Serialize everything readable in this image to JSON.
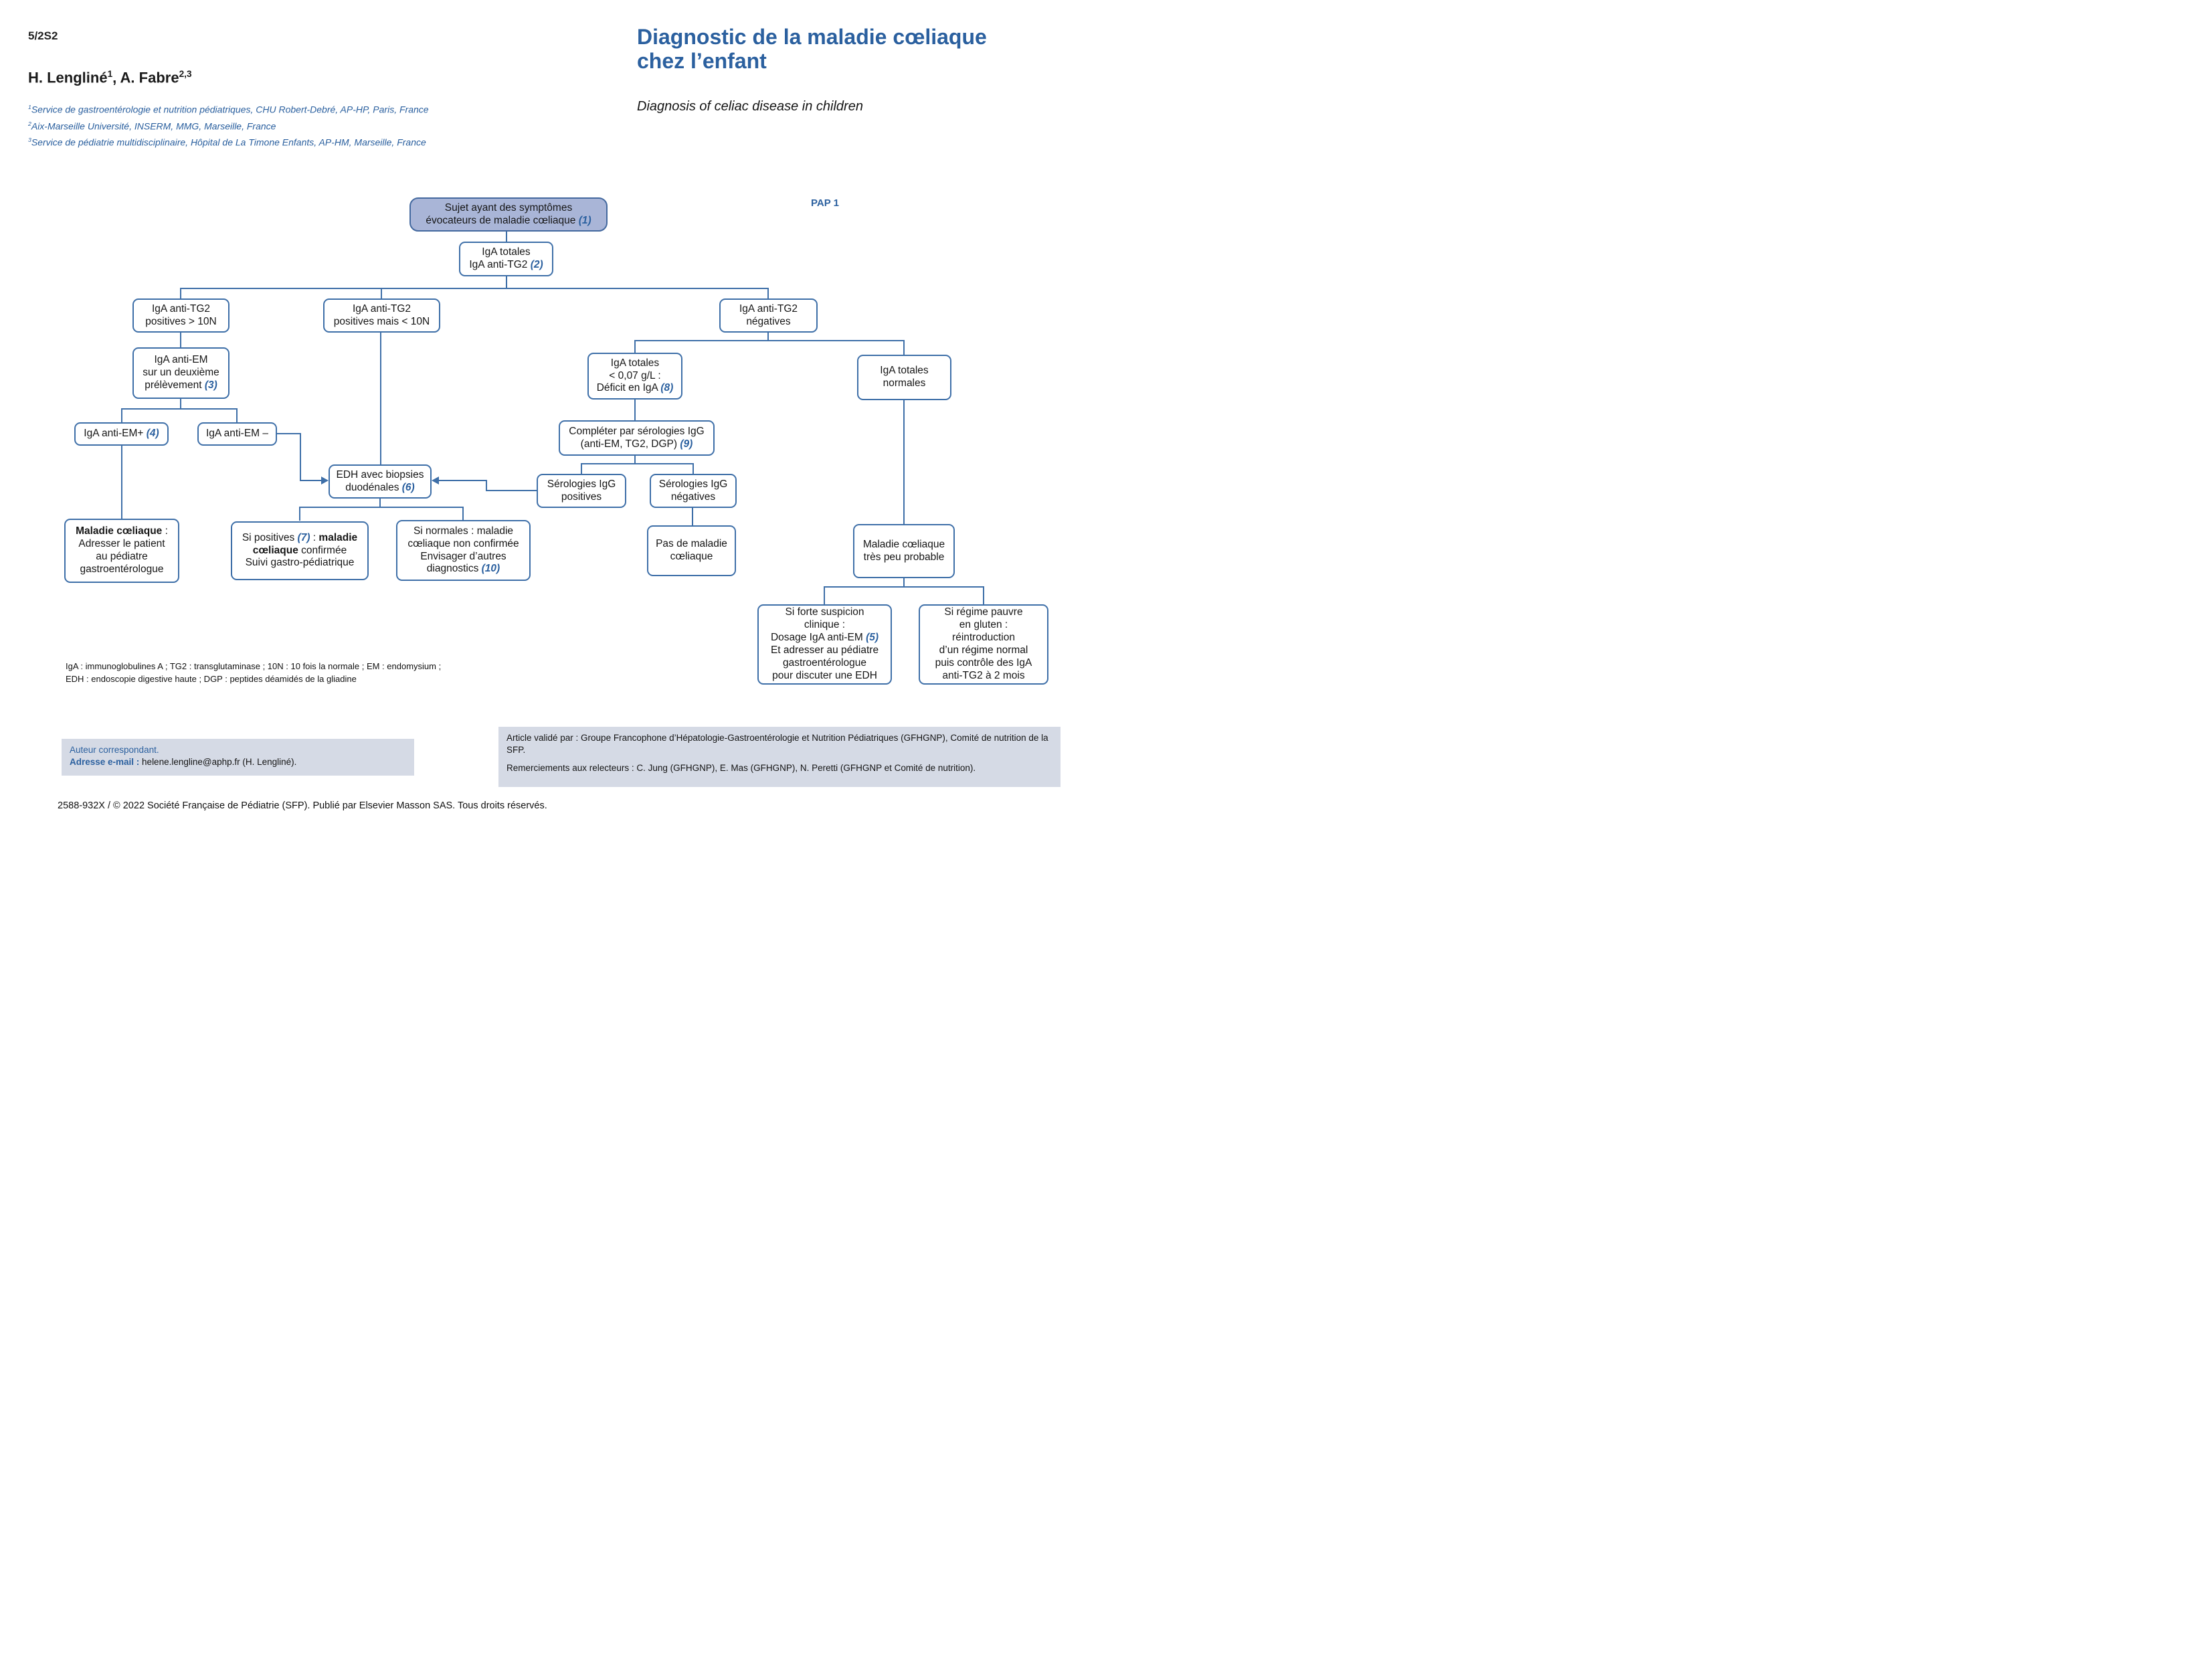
{
  "page": {
    "code": "5/2S2",
    "copyright": "2588-932X / © 2022 Société Française de Pédiatrie (SFP). Publié par Elsevier Masson SAS. Tous droits réservés."
  },
  "header": {
    "authors_runs": [
      [
        {
          "t": "H. Lengliné"
        },
        {
          "t": "1",
          "c": "sup"
        },
        {
          "t": ", A. Fabre"
        },
        {
          "t": "2,3",
          "c": "sup"
        }
      ]
    ],
    "affiliations": [
      [
        {
          "t": "1",
          "c": "sup"
        },
        {
          "t": "Service de gastroentérologie et nutrition pédiatriques, CHU Robert-Debré, AP-HP, Paris, France"
        }
      ],
      [
        {
          "t": "2",
          "c": "sup"
        },
        {
          "t": "Aix-Marseille Université, INSERM, MMG, Marseille, France"
        }
      ],
      [
        {
          "t": "3",
          "c": "sup"
        },
        {
          "t": "Service de pédiatrie multidisciplinaire, Hôpital de La Timone Enfants, AP-HM, Marseille, France"
        }
      ]
    ],
    "title_fr_lines": [
      [
        {
          "t": "Diagnostic de la maladie cœliaque"
        }
      ],
      [
        {
          "t": "chez l’enfant"
        }
      ]
    ],
    "title_en": "Diagnosis of celiac disease in children",
    "pap_label": "PAP 1"
  },
  "flowchart": {
    "nodes": {
      "start": {
        "lines": [
          [
            {
              "t": "Sujet ayant des symptômes"
            }
          ],
          [
            {
              "t": "évocateurs de maladie cœliaque "
            },
            {
              "t": "(1)",
              "c": "num"
            }
          ]
        ]
      },
      "iga_totales": {
        "lines": [
          [
            {
              "t": "IgA totales"
            }
          ],
          [
            {
              "t": "IgA anti-TG2 "
            },
            {
              "t": "(2)",
              "c": "num"
            }
          ]
        ]
      },
      "tg2_pos10": {
        "lines": [
          [
            {
              "t": "IgA anti-TG2"
            }
          ],
          [
            {
              "t": "positives > 10N"
            }
          ]
        ]
      },
      "tg2_lt10": {
        "lines": [
          [
            {
              "t": "IgA anti-TG2"
            }
          ],
          [
            {
              "t": "positives mais < 10N"
            }
          ]
        ]
      },
      "tg2_neg": {
        "lines": [
          [
            {
              "t": "IgA anti-TG2"
            }
          ],
          [
            {
              "t": "négatives"
            }
          ]
        ]
      },
      "em_second": {
        "lines": [
          [
            {
              "t": "IgA anti-EM"
            }
          ],
          [
            {
              "t": "sur un deuxième"
            }
          ],
          [
            {
              "t": "prélèvement "
            },
            {
              "t": "(3)",
              "c": "num"
            }
          ]
        ]
      },
      "em_plus": {
        "lines": [
          [
            {
              "t": "IgA anti-EM+ "
            },
            {
              "t": "(4)",
              "c": "num"
            }
          ]
        ]
      },
      "em_minus": {
        "lines": [
          [
            {
              "t": "IgA anti-EM –"
            }
          ]
        ]
      },
      "edh": {
        "lines": [
          [
            {
              "t": "EDH avec biopsies"
            }
          ],
          [
            {
              "t": "duodénales "
            },
            {
              "t": "(6)",
              "c": "num"
            }
          ]
        ]
      },
      "maladie": {
        "lines": [
          [
            {
              "t": "Maladie cœliaque",
              "c": "b"
            },
            {
              "t": " :"
            }
          ],
          [
            {
              "t": "Adresser le patient"
            }
          ],
          [
            {
              "t": "au pédiatre"
            }
          ],
          [
            {
              "t": "gastroentérologue"
            }
          ]
        ]
      },
      "si_positives": {
        "lines": [
          [
            {
              "t": "Si positives "
            },
            {
              "t": "(7)",
              "c": "num"
            },
            {
              "t": " : "
            },
            {
              "t": "maladie",
              "c": "b"
            }
          ],
          [
            {
              "t": "cœliaque",
              "c": "b"
            },
            {
              "t": " confirmée"
            }
          ],
          [
            {
              "t": "Suivi gastro-pédiatrique"
            }
          ]
        ]
      },
      "si_normales": {
        "lines": [
          [
            {
              "t": "Si normales : maladie"
            }
          ],
          [
            {
              "t": "cœliaque non confirmée"
            }
          ],
          [
            {
              "t": "Envisager d’autres"
            }
          ],
          [
            {
              "t": "diagnostics "
            },
            {
              "t": "(10)",
              "c": "num"
            }
          ]
        ]
      },
      "iga_deficit": {
        "lines": [
          [
            {
              "t": "IgA totales"
            }
          ],
          [
            {
              "t": "< 0,07 g/L :"
            }
          ],
          [
            {
              "t": "Déficit en IgA "
            },
            {
              "t": "(8)",
              "c": "num"
            }
          ]
        ]
      },
      "iga_normales": {
        "lines": [
          [
            {
              "t": "IgA totales"
            }
          ],
          [
            {
              "t": "normales"
            }
          ]
        ]
      },
      "completer": {
        "lines": [
          [
            {
              "t": "Compléter par sérologies IgG"
            }
          ],
          [
            {
              "t": "(anti-EM, TG2, DGP) "
            },
            {
              "t": "(9)",
              "c": "num"
            }
          ]
        ]
      },
      "ser_pos": {
        "lines": [
          [
            {
              "t": "Sérologies IgG"
            }
          ],
          [
            {
              "t": "positives"
            }
          ]
        ]
      },
      "ser_neg": {
        "lines": [
          [
            {
              "t": "Sérologies IgG"
            }
          ],
          [
            {
              "t": "négatives"
            }
          ]
        ]
      },
      "pas_maladie": {
        "lines": [
          [
            {
              "t": "Pas de maladie"
            }
          ],
          [
            {
              "t": "cœliaque"
            }
          ]
        ]
      },
      "tres_peu": {
        "lines": [
          [
            {
              "t": "Maladie cœliaque"
            }
          ],
          [
            {
              "t": "très peu probable"
            }
          ]
        ]
      },
      "si_forte": {
        "lines": [
          [
            {
              "t": "Si forte suspicion"
            }
          ],
          [
            {
              "t": "clinique :"
            }
          ],
          [
            {
              "t": "Dosage IgA anti-EM "
            },
            {
              "t": "(5)",
              "c": "num"
            }
          ],
          [
            {
              "t": "Et adresser au pédiatre"
            }
          ],
          [
            {
              "t": "gastroentérologue"
            }
          ],
          [
            {
              "t": "pour discuter une EDH"
            }
          ]
        ]
      },
      "si_regime": {
        "lines": [
          [
            {
              "t": "Si régime pauvre"
            }
          ],
          [
            {
              "t": "en gluten :"
            }
          ],
          [
            {
              "t": "réintroduction"
            }
          ],
          [
            {
              "t": "d’un régime normal"
            }
          ],
          [
            {
              "t": "puis contrôle des IgA"
            }
          ],
          [
            {
              "t": "anti-TG2 à 2 mois"
            }
          ]
        ]
      }
    }
  },
  "legend": {
    "line1": "IgA : immunoglobulines A ; TG2 : transglutaminase ; 10N : 10 fois la normale ; EM : endomysium ;",
    "line2": "EDH : endoscopie digestive haute ; DGP : peptides déamidés de la gliadine"
  },
  "footer": {
    "correspondent_lines": [
      [
        {
          "t": "Auteur correspondant.",
          "c": "blue"
        }
      ],
      [
        {
          "t": "Adresse e-mail : ",
          "c": "bluebold"
        },
        {
          "t": "helene.lengline@aphp.fr (H. Lengliné)."
        }
      ]
    ],
    "validation": "Article validé par : Groupe Francophone d’Hépatologie-Gastroentérologie et Nutrition Pédiatriques (GFHGNP), Comité de nutrition de la SFP.",
    "thanks": "Remerciements aux relecteurs : C. Jung (GFHGNP), E. Mas (GFHGNP), N. Peretti (GFHGNP et Comité de nutrition)."
  }
}
